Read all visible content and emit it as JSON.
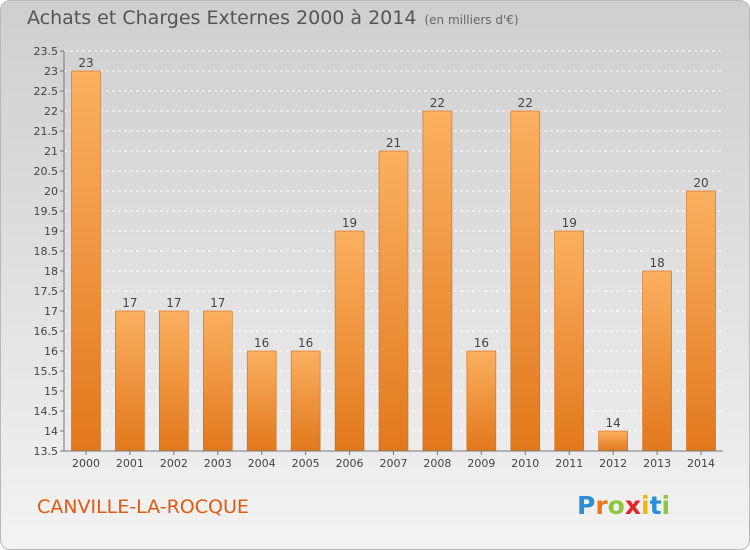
{
  "title": "Achats et Charges Externes 2000 à 2014",
  "unit": "(en milliers d'€)",
  "commune": "CANVILLE-LA-ROCQUE",
  "logo": {
    "letters": [
      "P",
      "r",
      "o",
      "x",
      "i",
      "t",
      "i"
    ],
    "colors": [
      "#2a8fd6",
      "#e97a1c",
      "#8cc63f",
      "#e2232a",
      "#f2b705",
      "#2a8fd6",
      "#8cc63f"
    ]
  },
  "colors": {
    "bar_top": "#fbb060",
    "bar_bottom": "#e2781c",
    "bar_edge": "#d26a12",
    "text": "#444444",
    "accent": "#e05a10"
  },
  "chart_data": {
    "type": "bar",
    "categories": [
      "2000",
      "2001",
      "2002",
      "2003",
      "2004",
      "2005",
      "2006",
      "2007",
      "2008",
      "2009",
      "2010",
      "2011",
      "2012",
      "2013",
      "2014"
    ],
    "values": [
      23,
      17,
      17,
      17,
      16,
      16,
      19,
      21,
      22,
      16,
      22,
      19,
      14,
      18,
      20
    ],
    "value_labels": [
      "23",
      "17",
      "17",
      "17",
      "16",
      "16",
      "19",
      "21",
      "22",
      "16",
      "22",
      "19",
      "14",
      "18",
      "20"
    ],
    "y_ticks": [
      "13.5",
      "14",
      "14.5",
      "15",
      "15.5",
      "16",
      "16.5",
      "17",
      "17.5",
      "18",
      "18.5",
      "19",
      "19.5",
      "20",
      "20.5",
      "21",
      "21.5",
      "22",
      "22.5",
      "23",
      "23.5"
    ],
    "ylim": [
      13.5,
      23.5
    ],
    "grid": true
  }
}
